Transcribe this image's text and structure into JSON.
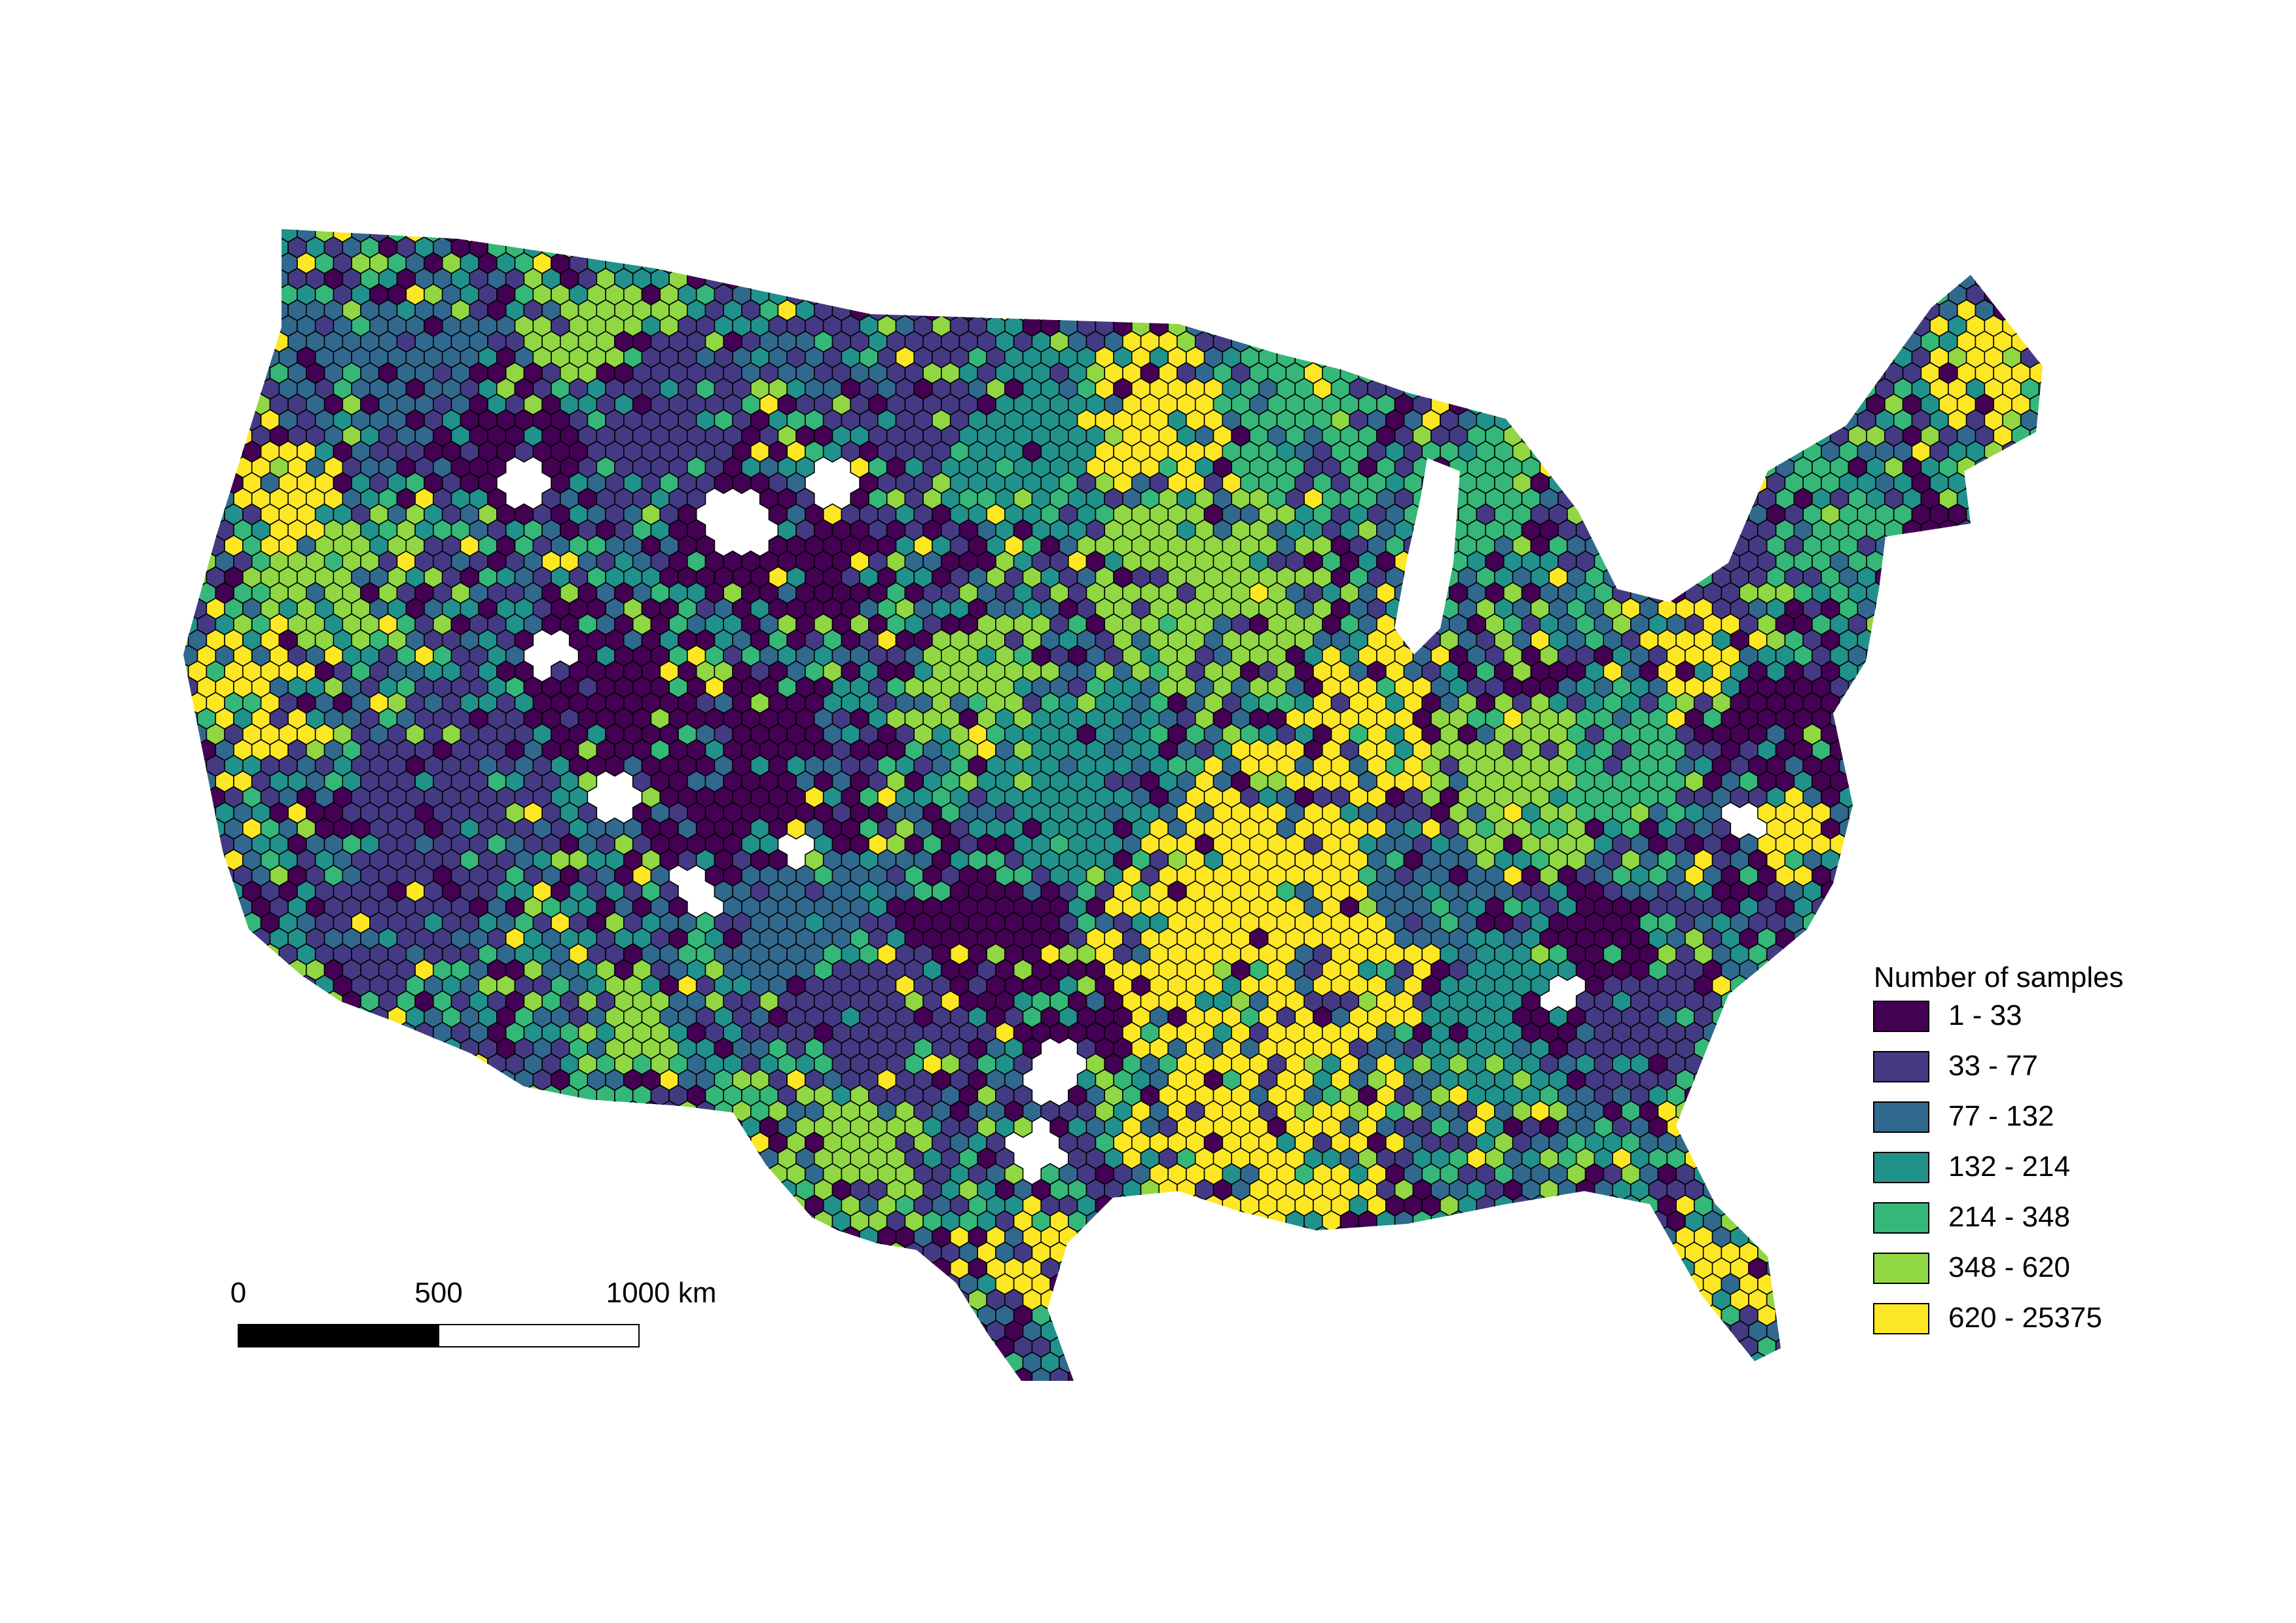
{
  "legend": {
    "title": "Number of samples",
    "classes": [
      {
        "label": "1 - 33",
        "min": 1,
        "max": 33,
        "color": "#440154"
      },
      {
        "label": "33 - 77",
        "min": 33,
        "max": 77,
        "color": "#443a83"
      },
      {
        "label": "77 - 132",
        "min": 77,
        "max": 132,
        "color": "#31688e"
      },
      {
        "label": "132 - 214",
        "min": 132,
        "max": 214,
        "color": "#21918c"
      },
      {
        "label": "214 - 348",
        "min": 214,
        "max": 348,
        "color": "#35b779"
      },
      {
        "label": "348 - 620",
        "min": 348,
        "max": 620,
        "color": "#90d743"
      },
      {
        "label": "620 - 25375",
        "min": 620,
        "max": 25375,
        "color": "#fde725"
      }
    ]
  },
  "scale_bar": {
    "labels": [
      "0",
      "500",
      "1000 km"
    ],
    "values_km": [
      0,
      500,
      1000
    ]
  },
  "map": {
    "type": "hexbin-choropleth",
    "region": "Contiguous United States",
    "hex_outline_color": "#000000",
    "empty_color": "#ffffff"
  }
}
